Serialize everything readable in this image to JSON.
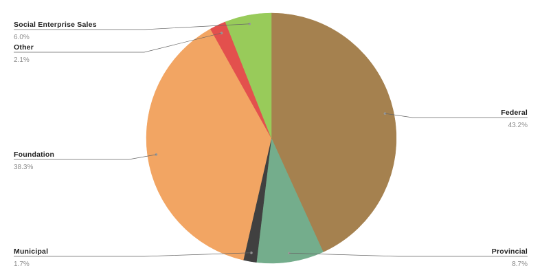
{
  "chart_data": {
    "type": "pie",
    "slices": [
      {
        "label": "Federal",
        "value": 43.2,
        "pct_label": "43.2%",
        "color": "#a5814f"
      },
      {
        "label": "Provincial",
        "value": 8.7,
        "pct_label": "8.7%",
        "color": "#74ad8c"
      },
      {
        "label": "Municipal",
        "value": 1.7,
        "pct_label": "1.7%",
        "color": "#404040"
      },
      {
        "label": "Foundation",
        "value": 38.3,
        "pct_label": "38.3%",
        "color": "#f2a563"
      },
      {
        "label": "Other",
        "value": 2.1,
        "pct_label": "2.1%",
        "color": "#e3504d"
      },
      {
        "label": "Social Enterprise Sales",
        "value": 6.0,
        "pct_label": "6.0%",
        "color": "#98cb5a"
      }
    ],
    "start_angle_deg": 0,
    "direction": "clockwise",
    "legend": "callout-labels",
    "leader_line_color": "#666666"
  }
}
